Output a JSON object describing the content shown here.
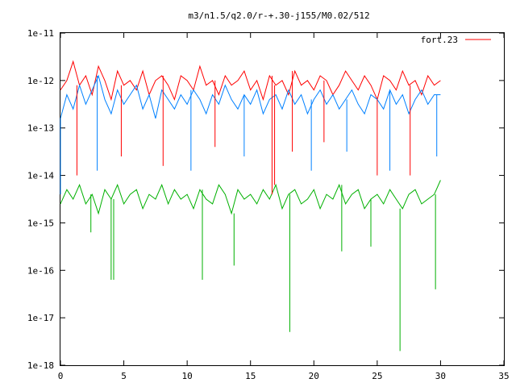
{
  "chart_data": {
    "type": "line",
    "title": "m3/n1.5/q2.0/r-+.30-j155/M0.02/512",
    "xlabel": "",
    "ylabel": "",
    "xlim": [
      0,
      35
    ],
    "ylim": [
      1e-18,
      1e-11
    ],
    "y_scale": "log",
    "grid": false,
    "legend_position": "top-right",
    "x_ticks": [
      "0",
      "5",
      "10",
      "15",
      "20",
      "25",
      "30",
      "35"
    ],
    "x_tick_values": [
      0,
      5,
      10,
      15,
      20,
      25,
      30,
      35
    ],
    "y_ticks": [
      "1e-11",
      "1e-12",
      "1e-13",
      "1e-14",
      "1e-15",
      "1e-16",
      "1e-17",
      "1e-18"
    ],
    "y_tick_exponents": [
      -11,
      -12,
      -13,
      -14,
      -15,
      -16,
      -17,
      -18
    ],
    "series": [
      {
        "name": "fort.23",
        "color": "#ff0000",
        "x": [
          0.0,
          0.5,
          1.0,
          1.5,
          2.0,
          2.5,
          3.0,
          3.5,
          4.0,
          4.5,
          5.0,
          5.5,
          6.0,
          6.5,
          7.0,
          7.5,
          8.0,
          8.5,
          9.0,
          9.5,
          10.0,
          10.5,
          11.0,
          11.5,
          12.0,
          12.5,
          13.0,
          13.5,
          14.0,
          14.5,
          15.0,
          15.5,
          16.0,
          16.5,
          17.0,
          17.5,
          18.0,
          18.5,
          19.0,
          19.5,
          20.0,
          20.5,
          21.0,
          21.5,
          22.0,
          22.5,
          23.0,
          23.5,
          24.0,
          24.5,
          25.0,
          25.5,
          26.0,
          26.5,
          27.0,
          27.5,
          28.0,
          28.5,
          29.0,
          29.5,
          30.0
        ],
        "log_y": [
          -12.2,
          -12.0,
          -11.6,
          -12.1,
          -11.9,
          -12.3,
          -11.7,
          -12.0,
          -12.4,
          -11.8,
          -12.1,
          -12.0,
          -12.2,
          -11.8,
          -12.3,
          -12.0,
          -11.9,
          -12.1,
          -12.4,
          -11.9,
          -12.0,
          -12.2,
          -11.7,
          -12.1,
          -12.0,
          -12.3,
          -11.9,
          -12.1,
          -12.0,
          -11.8,
          -12.2,
          -12.0,
          -12.4,
          -11.9,
          -12.1,
          -12.0,
          -12.3,
          -11.8,
          -12.1,
          -12.0,
          -12.2,
          -11.9,
          -12.0,
          -12.3,
          -12.1,
          -11.8,
          -12.0,
          -12.2,
          -11.9,
          -12.1,
          -12.4,
          -11.9,
          -12.0,
          -12.2,
          -11.8,
          -12.1,
          -12.0,
          -12.3,
          -11.9,
          -12.1,
          -12.0
        ]
      },
      {
        "color": "#0080ff",
        "x": [
          0.0,
          0.5,
          1.0,
          1.5,
          2.0,
          2.5,
          3.0,
          3.5,
          4.0,
          4.5,
          5.0,
          5.5,
          6.0,
          6.5,
          7.0,
          7.5,
          8.0,
          8.5,
          9.0,
          9.5,
          10.0,
          10.5,
          11.0,
          11.5,
          12.0,
          12.5,
          13.0,
          13.5,
          14.0,
          14.5,
          15.0,
          15.5,
          16.0,
          16.5,
          17.0,
          17.5,
          18.0,
          18.5,
          19.0,
          19.5,
          20.0,
          20.5,
          21.0,
          21.5,
          22.0,
          22.5,
          23.0,
          23.5,
          24.0,
          24.5,
          25.0,
          25.5,
          26.0,
          26.5,
          27.0,
          27.5,
          28.0,
          28.5,
          29.0,
          29.5,
          30.0
        ],
        "log_y": [
          -12.8,
          -12.3,
          -12.6,
          -12.1,
          -12.5,
          -12.2,
          -11.9,
          -12.4,
          -12.7,
          -12.2,
          -12.5,
          -12.3,
          -12.1,
          -12.6,
          -12.3,
          -12.8,
          -12.2,
          -12.4,
          -12.6,
          -12.3,
          -12.5,
          -12.2,
          -12.4,
          -12.7,
          -12.3,
          -12.5,
          -12.1,
          -12.4,
          -12.6,
          -12.3,
          -12.5,
          -12.2,
          -12.7,
          -12.4,
          -12.3,
          -12.6,
          -12.2,
          -12.5,
          -12.3,
          -12.7,
          -12.4,
          -12.2,
          -12.5,
          -12.3,
          -12.6,
          -12.4,
          -12.2,
          -12.5,
          -12.7,
          -12.3,
          -12.4,
          -12.6,
          -12.2,
          -12.5,
          -12.3,
          -12.7,
          -12.4,
          -12.2,
          -12.5,
          -12.3,
          -12.3
        ]
      },
      {
        "color": "#00b000",
        "x": [
          0.0,
          0.5,
          1.0,
          1.5,
          2.0,
          2.5,
          3.0,
          3.5,
          4.0,
          4.5,
          5.0,
          5.5,
          6.0,
          6.5,
          7.0,
          7.5,
          8.0,
          8.5,
          9.0,
          9.5,
          10.0,
          10.5,
          11.0,
          11.5,
          12.0,
          12.5,
          13.0,
          13.5,
          14.0,
          14.5,
          15.0,
          15.5,
          16.0,
          16.5,
          17.0,
          17.5,
          18.0,
          18.5,
          19.0,
          19.5,
          20.0,
          20.5,
          21.0,
          21.5,
          22.0,
          22.5,
          23.0,
          23.5,
          24.0,
          24.5,
          25.0,
          25.5,
          26.0,
          26.5,
          27.0,
          27.5,
          28.0,
          28.5,
          29.0,
          29.5,
          30.0
        ],
        "log_y": [
          -14.6,
          -14.3,
          -14.5,
          -14.2,
          -14.6,
          -14.4,
          -14.8,
          -14.3,
          -14.5,
          -14.2,
          -14.6,
          -14.4,
          -14.3,
          -14.7,
          -14.4,
          -14.5,
          -14.2,
          -14.6,
          -14.3,
          -14.5,
          -14.4,
          -14.7,
          -14.3,
          -14.5,
          -14.6,
          -14.2,
          -14.4,
          -14.8,
          -14.3,
          -14.5,
          -14.4,
          -14.6,
          -14.3,
          -14.5,
          -14.2,
          -14.7,
          -14.4,
          -14.3,
          -14.6,
          -14.5,
          -14.3,
          -14.7,
          -14.4,
          -14.5,
          -14.2,
          -14.6,
          -14.4,
          -14.3,
          -14.7,
          -14.5,
          -14.4,
          -14.6,
          -14.3,
          -14.5,
          -14.7,
          -14.4,
          -14.3,
          -14.6,
          -14.5,
          -14.4,
          -14.1
        ]
      }
    ],
    "dips": [
      {
        "series": 0,
        "x": 1.3,
        "log_y": -14.0
      },
      {
        "series": 0,
        "x": 4.8,
        "log_y": -13.6
      },
      {
        "series": 0,
        "x": 8.1,
        "log_y": -13.8
      },
      {
        "series": 0,
        "x": 12.2,
        "log_y": -13.4
      },
      {
        "series": 0,
        "x": 16.7,
        "log_y": -14.4
      },
      {
        "series": 0,
        "x": 16.9,
        "log_y": -14.2
      },
      {
        "series": 0,
        "x": 18.3,
        "log_y": -13.5
      },
      {
        "series": 0,
        "x": 25.0,
        "log_y": -14.0
      },
      {
        "series": 0,
        "x": 27.6,
        "log_y": -14.0
      },
      {
        "series": 0,
        "x": 20.8,
        "log_y": -13.3
      },
      {
        "series": 1,
        "x": 0.0,
        "log_y": -14.4
      },
      {
        "series": 1,
        "x": 2.9,
        "log_y": -13.9
      },
      {
        "series": 1,
        "x": 10.3,
        "log_y": -13.9
      },
      {
        "series": 1,
        "x": 14.5,
        "log_y": -13.6
      },
      {
        "series": 1,
        "x": 19.8,
        "log_y": -13.9
      },
      {
        "series": 1,
        "x": 22.6,
        "log_y": -13.5
      },
      {
        "series": 1,
        "x": 26.0,
        "log_y": -13.9
      },
      {
        "series": 1,
        "x": 29.7,
        "log_y": -13.6
      },
      {
        "series": 2,
        "x": 4.0,
        "log_y": -16.2
      },
      {
        "series": 2,
        "x": 4.2,
        "log_y": -16.2
      },
      {
        "series": 2,
        "x": 11.2,
        "log_y": -16.2
      },
      {
        "series": 2,
        "x": 18.1,
        "log_y": -17.3
      },
      {
        "series": 2,
        "x": 26.8,
        "log_y": -17.7
      },
      {
        "series": 2,
        "x": 29.6,
        "log_y": -16.4
      },
      {
        "series": 2,
        "x": 13.7,
        "log_y": -15.9
      },
      {
        "series": 2,
        "x": 24.5,
        "log_y": -15.5
      },
      {
        "series": 2,
        "x": 2.4,
        "log_y": -15.2
      },
      {
        "series": 2,
        "x": 22.2,
        "log_y": -15.6
      }
    ]
  }
}
